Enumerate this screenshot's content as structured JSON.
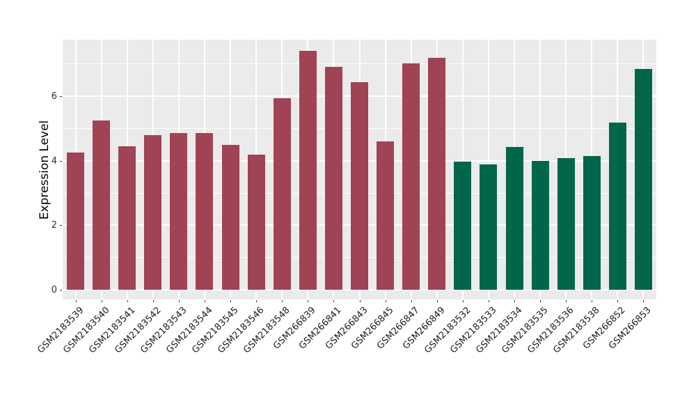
{
  "chart_data": {
    "type": "bar",
    "title": "",
    "xlabel": "",
    "ylabel": "Expression Level",
    "legend": false,
    "grid": true,
    "panel_bg": "#EBEBEB",
    "grid_color": "#FFFFFF",
    "yticks": [
      0,
      2,
      4,
      6
    ],
    "minor_yticks": [
      1,
      3,
      5,
      7
    ],
    "ylim": [
      -0.3,
      7.76
    ],
    "group_colors": {
      "group1": "#A04354",
      "group2": "#02664A"
    },
    "categories": [
      "GSM2183539",
      "GSM2183540",
      "GSM2183541",
      "GSM2183542",
      "GSM2183543",
      "GSM2183544",
      "GSM2183545",
      "GSM2183546",
      "GSM2183548",
      "GSM266839",
      "GSM266841",
      "GSM266843",
      "GSM266845",
      "GSM266847",
      "GSM266849",
      "GSM2183532",
      "GSM2183533",
      "GSM2183534",
      "GSM2183535",
      "GSM2183536",
      "GSM2183538",
      "GSM266852",
      "GSM266853"
    ],
    "values": [
      4.25,
      5.25,
      4.46,
      4.8,
      4.86,
      4.86,
      4.5,
      4.2,
      5.95,
      7.4,
      6.92,
      6.44,
      4.6,
      7.03,
      7.19,
      3.98,
      3.89,
      4.43,
      4.0,
      4.09,
      4.14,
      5.19,
      6.85
    ],
    "bar_colors": [
      "#A04354",
      "#A04354",
      "#A04354",
      "#A04354",
      "#A04354",
      "#A04354",
      "#A04354",
      "#A04354",
      "#A04354",
      "#A04354",
      "#A04354",
      "#A04354",
      "#A04354",
      "#A04354",
      "#A04354",
      "#02664A",
      "#02664A",
      "#02664A",
      "#02664A",
      "#02664A",
      "#02664A",
      "#02664A",
      "#02664A"
    ]
  }
}
